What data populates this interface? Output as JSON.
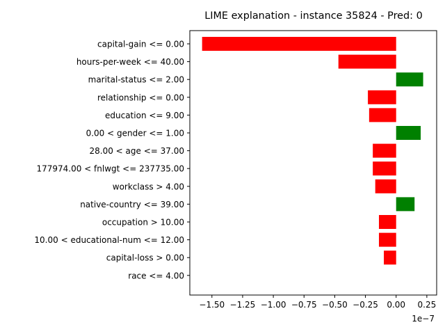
{
  "chart_data": {
    "type": "bar",
    "orientation": "horizontal",
    "title": "LIME explanation - instance 35824 - Pred: 0",
    "xlabel": "",
    "ylabel": "",
    "x_offset_label": "1e−7",
    "x_scale_exponent": -7,
    "xlim": [
      -1.68,
      0.33
    ],
    "xticks": [
      -1.5,
      -1.25,
      -1.0,
      -0.75,
      -0.5,
      -0.25,
      0.0,
      0.25
    ],
    "xtick_labels": [
      "−1.50",
      "−1.25",
      "−1.00",
      "−0.75",
      "−0.50",
      "−0.25",
      "0.00",
      "0.25"
    ],
    "grid": false,
    "categories": [
      "capital-gain <= 0.00",
      "hours-per-week <= 40.00",
      "marital-status <= 2.00",
      "relationship <= 0.00",
      "education <= 9.00",
      "0.00 < gender <= 1.00",
      "28.00 < age <= 37.00",
      "177974.00 < fnlwgt <= 237735.00",
      "workclass > 4.00",
      "native-country <= 39.00",
      "occupation > 10.00",
      "10.00 < educational-num <= 12.00",
      "capital-loss > 0.00",
      "race <= 4.00"
    ],
    "values": [
      -1.58,
      -0.47,
      0.22,
      -0.23,
      -0.22,
      0.2,
      -0.19,
      -0.19,
      -0.17,
      0.15,
      -0.14,
      -0.14,
      -0.1,
      0.0
    ],
    "colors": {
      "positive": "#008000",
      "negative": "#ff0000"
    }
  }
}
